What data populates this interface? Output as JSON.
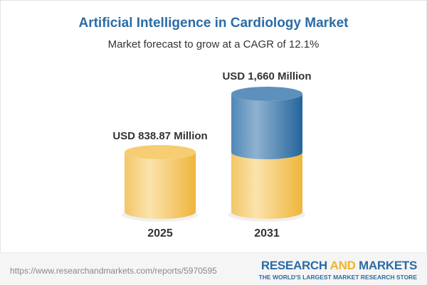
{
  "title": "Artificial Intelligence in Cardiology Market",
  "subtitle": "Market forecast to grow at a CAGR of 12.1%",
  "chart_data": {
    "type": "bar",
    "style": "3d-cylinder",
    "categories": [
      "2025",
      "2031"
    ],
    "values": [
      838.87,
      1660
    ],
    "data_labels": [
      "USD 838.87 Million",
      "USD 1,660 Million"
    ],
    "unit": "USD Million",
    "colors": {
      "base": "#f2c14e",
      "growth": "#2f6fa5"
    }
  },
  "footer": {
    "url": "https://www.researchandmarkets.com/reports/5970595",
    "logo_part1": "RESEARCH ",
    "logo_part2": "AND",
    "logo_part3": " MARKETS",
    "tagline": "THE WORLD'S LARGEST MARKET RESEARCH STORE"
  }
}
